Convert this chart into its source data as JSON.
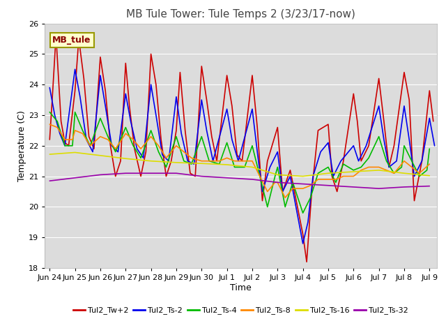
{
  "title": "MB Tule Tower: Tule Temps 2 (3/23/17-now)",
  "xlabel": "Time",
  "ylabel": "Temperature (C)",
  "ylim": [
    18.0,
    26.0
  ],
  "yticks": [
    18.0,
    19.0,
    20.0,
    21.0,
    22.0,
    23.0,
    24.0,
    25.0,
    26.0
  ],
  "xtick_labels": [
    "Jun 24",
    "Jun 25",
    "Jun 26",
    "Jun 27",
    "Jun 28",
    "Jun 29",
    "Jun 30",
    "Jul 1",
    "Jul 2",
    "Jul 3",
    "Jul 4",
    "Jul 5",
    "Jul 6",
    "Jul 7",
    "Jul 8",
    "Jul 9"
  ],
  "background_color": "#dcdcdc",
  "legend_label": "MB_tule",
  "series": {
    "Tul2_Tw+2": {
      "color": "#cc0000",
      "points": [
        [
          0.0,
          22.2
        ],
        [
          0.1,
          23.5
        ],
        [
          0.25,
          25.6
        ],
        [
          0.45,
          22.8
        ],
        [
          0.6,
          22.1
        ],
        [
          0.75,
          22.0
        ],
        [
          1.0,
          23.8
        ],
        [
          1.15,
          25.5
        ],
        [
          1.35,
          24.2
        ],
        [
          1.55,
          22.3
        ],
        [
          1.75,
          21.9
        ],
        [
          2.0,
          24.9
        ],
        [
          2.2,
          23.8
        ],
        [
          2.4,
          22.0
        ],
        [
          2.6,
          21.0
        ],
        [
          2.8,
          21.5
        ],
        [
          3.0,
          24.7
        ],
        [
          3.15,
          23.3
        ],
        [
          3.35,
          21.9
        ],
        [
          3.6,
          21.0
        ],
        [
          3.8,
          21.8
        ],
        [
          4.0,
          25.0
        ],
        [
          4.2,
          24.0
        ],
        [
          4.4,
          22.2
        ],
        [
          4.6,
          21.0
        ],
        [
          4.8,
          21.5
        ],
        [
          5.0,
          22.5
        ],
        [
          5.15,
          24.4
        ],
        [
          5.35,
          22.5
        ],
        [
          5.55,
          21.1
        ],
        [
          5.75,
          21.0
        ],
        [
          6.0,
          24.6
        ],
        [
          6.2,
          23.5
        ],
        [
          6.4,
          22.3
        ],
        [
          6.6,
          21.5
        ],
        [
          7.0,
          24.3
        ],
        [
          7.2,
          23.3
        ],
        [
          7.4,
          21.7
        ],
        [
          7.6,
          21.5
        ],
        [
          8.0,
          24.3
        ],
        [
          8.2,
          22.6
        ],
        [
          8.4,
          20.2
        ],
        [
          8.6,
          21.5
        ],
        [
          9.0,
          22.6
        ],
        [
          9.2,
          20.5
        ],
        [
          9.5,
          21.2
        ],
        [
          10.0,
          19.1
        ],
        [
          10.15,
          18.2
        ],
        [
          10.35,
          20.5
        ],
        [
          10.6,
          22.5
        ],
        [
          11.0,
          22.7
        ],
        [
          11.15,
          21.0
        ],
        [
          11.35,
          20.5
        ],
        [
          11.6,
          21.5
        ],
        [
          12.0,
          23.7
        ],
        [
          12.15,
          22.8
        ],
        [
          12.3,
          21.5
        ],
        [
          12.6,
          22.0
        ],
        [
          13.0,
          24.2
        ],
        [
          13.2,
          22.8
        ],
        [
          13.4,
          21.3
        ],
        [
          13.6,
          22.0
        ],
        [
          14.0,
          24.4
        ],
        [
          14.2,
          23.5
        ],
        [
          14.4,
          20.2
        ],
        [
          14.7,
          21.5
        ],
        [
          15.0,
          23.8
        ],
        [
          15.15,
          22.8
        ]
      ]
    },
    "Tul2_Ts-2": {
      "color": "#0000ee",
      "points": [
        [
          0.0,
          23.9
        ],
        [
          0.2,
          23.0
        ],
        [
          0.4,
          22.4
        ],
        [
          0.6,
          22.0
        ],
        [
          1.0,
          24.5
        ],
        [
          1.2,
          23.6
        ],
        [
          1.45,
          22.2
        ],
        [
          1.7,
          21.8
        ],
        [
          2.0,
          24.3
        ],
        [
          2.2,
          23.3
        ],
        [
          2.45,
          22.0
        ],
        [
          2.7,
          21.8
        ],
        [
          3.0,
          23.7
        ],
        [
          3.2,
          22.8
        ],
        [
          3.45,
          21.9
        ],
        [
          3.7,
          21.6
        ],
        [
          4.0,
          24.0
        ],
        [
          4.2,
          23.0
        ],
        [
          4.45,
          21.7
        ],
        [
          4.7,
          21.5
        ],
        [
          5.0,
          23.6
        ],
        [
          5.2,
          22.4
        ],
        [
          5.45,
          21.5
        ],
        [
          5.7,
          21.4
        ],
        [
          6.0,
          23.5
        ],
        [
          6.2,
          22.5
        ],
        [
          6.45,
          21.5
        ],
        [
          7.0,
          23.2
        ],
        [
          7.2,
          22.2
        ],
        [
          7.45,
          21.5
        ],
        [
          8.0,
          23.2
        ],
        [
          8.2,
          21.8
        ],
        [
          8.4,
          20.5
        ],
        [
          8.7,
          21.3
        ],
        [
          9.0,
          21.8
        ],
        [
          9.2,
          20.5
        ],
        [
          9.5,
          21.0
        ],
        [
          10.0,
          18.8
        ],
        [
          10.2,
          19.5
        ],
        [
          10.4,
          21.0
        ],
        [
          10.7,
          21.8
        ],
        [
          11.0,
          22.1
        ],
        [
          11.2,
          21.0
        ],
        [
          11.5,
          21.5
        ],
        [
          12.0,
          22.0
        ],
        [
          12.2,
          21.5
        ],
        [
          12.5,
          22.0
        ],
        [
          13.0,
          23.3
        ],
        [
          13.2,
          22.2
        ],
        [
          13.4,
          21.3
        ],
        [
          13.7,
          21.5
        ],
        [
          14.0,
          23.3
        ],
        [
          14.2,
          22.2
        ],
        [
          14.4,
          21.0
        ],
        [
          14.7,
          21.5
        ],
        [
          15.0,
          22.9
        ],
        [
          15.2,
          22.0
        ]
      ]
    },
    "Tul2_Ts-4": {
      "color": "#00bb00",
      "points": [
        [
          0.0,
          23.1
        ],
        [
          0.3,
          22.8
        ],
        [
          0.6,
          22.0
        ],
        [
          0.9,
          22.0
        ],
        [
          1.0,
          23.1
        ],
        [
          1.3,
          22.5
        ],
        [
          1.6,
          22.0
        ],
        [
          2.0,
          22.9
        ],
        [
          2.3,
          22.3
        ],
        [
          2.6,
          21.8
        ],
        [
          3.0,
          22.6
        ],
        [
          3.3,
          22.0
        ],
        [
          3.6,
          21.6
        ],
        [
          4.0,
          22.5
        ],
        [
          4.3,
          21.8
        ],
        [
          4.6,
          21.3
        ],
        [
          5.0,
          22.3
        ],
        [
          5.3,
          21.5
        ],
        [
          5.6,
          21.4
        ],
        [
          6.0,
          22.3
        ],
        [
          6.3,
          21.5
        ],
        [
          6.7,
          21.4
        ],
        [
          7.0,
          22.1
        ],
        [
          7.3,
          21.3
        ],
        [
          7.7,
          21.3
        ],
        [
          8.0,
          22.0
        ],
        [
          8.3,
          21.0
        ],
        [
          8.6,
          20.0
        ],
        [
          8.9,
          21.0
        ],
        [
          9.0,
          21.3
        ],
        [
          9.3,
          20.0
        ],
        [
          9.6,
          20.8
        ],
        [
          10.0,
          19.8
        ],
        [
          10.3,
          20.3
        ],
        [
          10.6,
          21.1
        ],
        [
          11.0,
          21.3
        ],
        [
          11.3,
          20.8
        ],
        [
          11.6,
          21.4
        ],
        [
          12.0,
          21.2
        ],
        [
          12.3,
          21.3
        ],
        [
          12.6,
          21.6
        ],
        [
          13.0,
          22.3
        ],
        [
          13.3,
          21.5
        ],
        [
          13.6,
          21.1
        ],
        [
          13.9,
          21.3
        ],
        [
          14.0,
          22.0
        ],
        [
          14.3,
          21.5
        ],
        [
          14.6,
          21.0
        ],
        [
          14.9,
          21.2
        ],
        [
          15.0,
          21.9
        ]
      ]
    },
    "Tul2_Ts-8": {
      "color": "#ff8800",
      "points": [
        [
          0.0,
          22.7
        ],
        [
          0.3,
          22.6
        ],
        [
          0.6,
          22.2
        ],
        [
          0.9,
          22.2
        ],
        [
          1.0,
          22.5
        ],
        [
          1.3,
          22.4
        ],
        [
          1.6,
          22.0
        ],
        [
          2.0,
          22.3
        ],
        [
          2.3,
          22.2
        ],
        [
          2.6,
          21.9
        ],
        [
          3.0,
          22.4
        ],
        [
          3.3,
          22.2
        ],
        [
          3.6,
          21.9
        ],
        [
          4.0,
          22.3
        ],
        [
          4.3,
          22.0
        ],
        [
          4.6,
          21.6
        ],
        [
          5.0,
          22.0
        ],
        [
          5.3,
          21.8
        ],
        [
          5.6,
          21.6
        ],
        [
          6.0,
          21.5
        ],
        [
          6.3,
          21.5
        ],
        [
          6.7,
          21.5
        ],
        [
          7.0,
          21.6
        ],
        [
          7.3,
          21.5
        ],
        [
          7.7,
          21.5
        ],
        [
          8.0,
          21.5
        ],
        [
          8.3,
          21.0
        ],
        [
          8.6,
          20.5
        ],
        [
          8.9,
          20.8
        ],
        [
          9.0,
          20.8
        ],
        [
          9.3,
          20.3
        ],
        [
          9.6,
          20.6
        ],
        [
          10.0,
          20.6
        ],
        [
          10.3,
          20.7
        ],
        [
          10.6,
          20.9
        ],
        [
          11.0,
          20.9
        ],
        [
          11.3,
          20.9
        ],
        [
          11.6,
          21.0
        ],
        [
          12.0,
          21.0
        ],
        [
          12.3,
          21.2
        ],
        [
          12.6,
          21.3
        ],
        [
          13.0,
          21.3
        ],
        [
          13.3,
          21.2
        ],
        [
          13.6,
          21.1
        ],
        [
          14.0,
          21.5
        ],
        [
          14.3,
          21.3
        ],
        [
          14.6,
          21.1
        ],
        [
          15.0,
          21.4
        ]
      ]
    },
    "Tul2_Ts-16": {
      "color": "#dddd00",
      "points": [
        [
          0.0,
          21.72
        ],
        [
          1.0,
          21.78
        ],
        [
          2.0,
          21.68
        ],
        [
          3.0,
          21.58
        ],
        [
          4.0,
          21.5
        ],
        [
          5.0,
          21.45
        ],
        [
          6.0,
          21.42
        ],
        [
          7.0,
          21.38
        ],
        [
          8.0,
          21.3
        ],
        [
          9.0,
          21.05
        ],
        [
          10.0,
          21.0
        ],
        [
          10.5,
          21.05
        ],
        [
          11.0,
          21.1
        ],
        [
          12.0,
          21.15
        ],
        [
          13.0,
          21.2
        ],
        [
          14.0,
          21.1
        ],
        [
          15.0,
          21.02
        ]
      ]
    },
    "Tul2_Ts-32": {
      "color": "#9900aa",
      "points": [
        [
          0.0,
          20.85
        ],
        [
          1.0,
          20.95
        ],
        [
          2.0,
          21.05
        ],
        [
          3.0,
          21.1
        ],
        [
          4.0,
          21.1
        ],
        [
          5.0,
          21.1
        ],
        [
          6.0,
          21.0
        ],
        [
          7.0,
          20.95
        ],
        [
          8.0,
          20.9
        ],
        [
          9.0,
          20.8
        ],
        [
          10.0,
          20.75
        ],
        [
          11.0,
          20.7
        ],
        [
          12.0,
          20.65
        ],
        [
          13.0,
          20.6
        ],
        [
          14.0,
          20.65
        ],
        [
          15.0,
          20.68
        ]
      ]
    }
  },
  "x_tick_positions": [
    0,
    1,
    2,
    3,
    4,
    5,
    6,
    7,
    8,
    9,
    10,
    11,
    12,
    13,
    14,
    15
  ],
  "title_fontsize": 11,
  "axis_fontsize": 9,
  "tick_fontsize": 8,
  "legend_fontsize": 8,
  "linewidth": 1.2
}
